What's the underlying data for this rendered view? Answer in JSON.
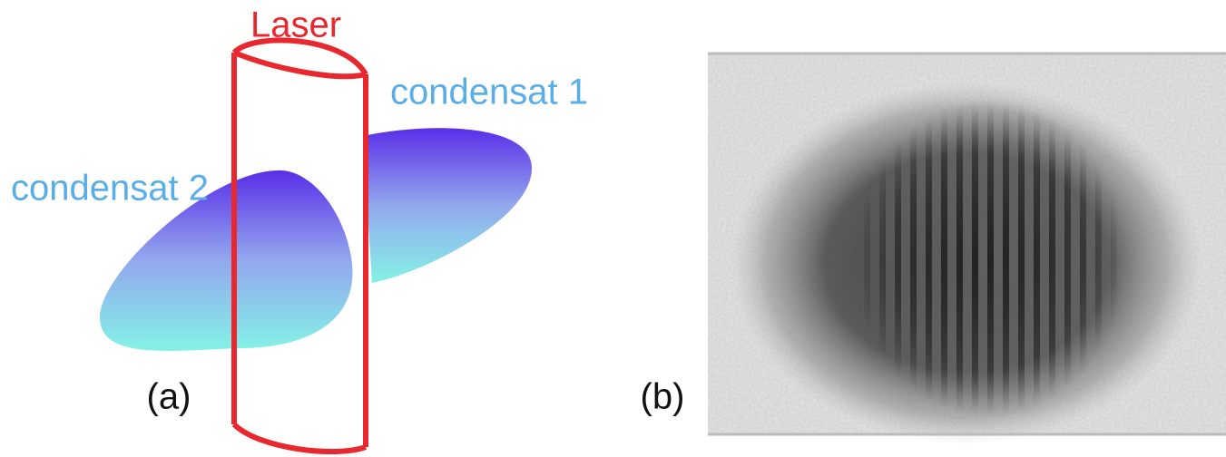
{
  "panel_a": {
    "label": "(a)",
    "laser": "Laser",
    "condensate_1": "condensat 1",
    "condensate_2": "condensat 2"
  },
  "panel_b": {
    "label": "(b)"
  }
}
